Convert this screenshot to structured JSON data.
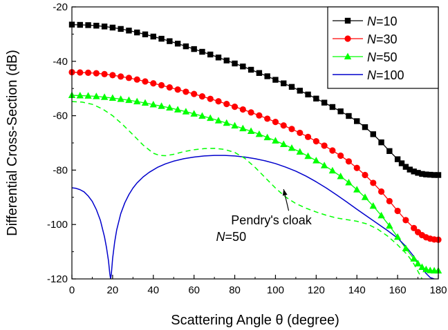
{
  "chart_data": {
    "type": "line",
    "xlabel": "Scattering Angle θ (degree)",
    "ylabel": "Differential Cross-Section (dB)",
    "xlim": [
      0,
      180
    ],
    "ylim": [
      -120,
      -20
    ],
    "xticks": [
      0,
      20,
      40,
      60,
      80,
      100,
      120,
      140,
      160,
      180
    ],
    "yticks": [
      -120,
      -100,
      -80,
      -60,
      -40,
      -20
    ],
    "grid": false,
    "legend_position": "top-right",
    "series": [
      {
        "name_prefix": "N",
        "name_value": "=10",
        "color": "#000000",
        "marker": "square",
        "dash": "solid",
        "x": [
          0,
          4,
          8,
          12,
          16,
          20,
          24,
          28,
          32,
          36,
          40,
          44,
          48,
          52,
          56,
          60,
          64,
          68,
          72,
          76,
          80,
          84,
          88,
          92,
          96,
          100,
          104,
          108,
          112,
          116,
          120,
          124,
          128,
          132,
          136,
          140,
          144,
          148,
          152,
          156,
          160,
          162,
          164,
          166,
          168,
          170,
          172,
          174,
          176,
          178,
          180
        ],
        "y": [
          -26.5,
          -26.6,
          -26.7,
          -26.9,
          -27.2,
          -27.6,
          -28.1,
          -28.7,
          -29.4,
          -30.1,
          -30.9,
          -31.7,
          -32.6,
          -33.5,
          -34.5,
          -35.5,
          -36.5,
          -37.5,
          -38.6,
          -39.7,
          -40.8,
          -41.9,
          -43.1,
          -44.3,
          -45.5,
          -46.8,
          -48.1,
          -49.4,
          -50.8,
          -52.2,
          -53.7,
          -55.2,
          -56.8,
          -58.4,
          -60.1,
          -62.0,
          -64.2,
          -66.8,
          -69.8,
          -73.0,
          -76.0,
          -77.5,
          -78.8,
          -79.8,
          -80.5,
          -81.0,
          -81.4,
          -81.6,
          -81.7,
          -81.8,
          -81.8
        ]
      },
      {
        "name_prefix": "N",
        "name_value": "=30",
        "color": "#ff0000",
        "marker": "circle",
        "dash": "solid",
        "x": [
          0,
          4,
          8,
          12,
          16,
          20,
          24,
          28,
          32,
          36,
          40,
          44,
          48,
          52,
          56,
          60,
          64,
          68,
          72,
          76,
          80,
          84,
          88,
          92,
          96,
          100,
          104,
          108,
          112,
          116,
          120,
          124,
          128,
          132,
          136,
          140,
          144,
          148,
          152,
          156,
          160,
          164,
          168,
          170,
          172,
          174,
          176,
          178,
          180
        ],
        "y": [
          -44.0,
          -44.1,
          -44.2,
          -44.4,
          -44.7,
          -45.1,
          -45.6,
          -46.1,
          -46.7,
          -47.4,
          -48.1,
          -48.8,
          -49.6,
          -50.4,
          -51.2,
          -52.0,
          -52.9,
          -53.8,
          -54.7,
          -55.7,
          -56.7,
          -57.7,
          -58.8,
          -59.9,
          -61.1,
          -62.3,
          -63.6,
          -64.9,
          -66.3,
          -67.8,
          -69.4,
          -71.0,
          -72.8,
          -74.7,
          -76.8,
          -79.2,
          -81.8,
          -84.7,
          -87.9,
          -91.4,
          -95.0,
          -98.4,
          -101.3,
          -102.8,
          -103.9,
          -104.7,
          -105.2,
          -105.5,
          -105.6
        ]
      },
      {
        "name_prefix": "N",
        "name_value": "=50",
        "color": "#00ff00",
        "marker": "triangle",
        "dash": "solid",
        "x": [
          0,
          4,
          8,
          12,
          16,
          20,
          24,
          28,
          32,
          36,
          40,
          44,
          48,
          52,
          56,
          60,
          64,
          68,
          72,
          76,
          80,
          84,
          88,
          92,
          96,
          100,
          104,
          108,
          112,
          116,
          120,
          124,
          128,
          132,
          136,
          140,
          144,
          148,
          152,
          156,
          160,
          164,
          168,
          170,
          172,
          174,
          176,
          178,
          180
        ],
        "y": [
          -52.5,
          -52.6,
          -52.7,
          -52.9,
          -53.2,
          -53.5,
          -53.9,
          -54.3,
          -54.8,
          -55.3,
          -55.9,
          -56.5,
          -57.1,
          -57.8,
          -58.5,
          -59.3,
          -60.1,
          -60.9,
          -61.8,
          -62.7,
          -63.7,
          -64.7,
          -65.7,
          -66.8,
          -68.0,
          -69.2,
          -70.5,
          -71.9,
          -73.3,
          -74.9,
          -76.5,
          -78.3,
          -80.2,
          -82.3,
          -84.6,
          -87.2,
          -90.0,
          -93.2,
          -96.7,
          -100.5,
          -104.6,
          -108.8,
          -112.6,
          -114.4,
          -115.7,
          -116.5,
          -116.9,
          -117.0,
          -117.0
        ]
      },
      {
        "name_prefix": "N",
        "name_value": "=100",
        "color": "#0000cc",
        "marker": "none",
        "dash": "solid",
        "x": [
          0,
          2,
          4,
          6,
          8,
          10,
          12,
          14,
          16,
          17,
          18,
          18.6,
          19,
          19.4,
          20,
          21,
          22,
          24,
          26,
          28,
          30,
          32,
          35,
          38,
          42,
          46,
          50,
          55,
          60,
          65,
          70,
          75,
          80,
          85,
          90,
          95,
          100,
          105,
          110,
          115,
          120,
          125,
          130,
          135,
          140,
          145,
          150,
          155,
          160,
          164,
          168,
          171,
          174,
          176,
          178
        ],
        "y": [
          -86.5,
          -86.7,
          -87.2,
          -88.0,
          -89.5,
          -91.5,
          -94.5,
          -98.5,
          -104.5,
          -108.5,
          -113.5,
          -118.0,
          -120,
          -118.0,
          -112.5,
          -106.5,
          -102.0,
          -96.0,
          -92.0,
          -89.0,
          -86.6,
          -84.7,
          -82.5,
          -80.8,
          -79.0,
          -77.7,
          -76.7,
          -75.8,
          -75.2,
          -74.8,
          -74.6,
          -74.6,
          -74.8,
          -75.2,
          -75.8,
          -76.6,
          -77.6,
          -78.9,
          -80.4,
          -82.2,
          -84.3,
          -86.6,
          -89.1,
          -91.7,
          -94.4,
          -97.0,
          -99.6,
          -102.2,
          -105.0,
          -108.0,
          -111.8,
          -115.0,
          -118.0,
          -119.5,
          -120
        ]
      },
      {
        "name": "",
        "color": "#00ff00",
        "marker": "none",
        "dash": "dashed",
        "x": [
          0,
          5,
          10,
          15,
          20,
          25,
          30,
          35,
          40,
          43,
          46,
          50,
          55,
          60,
          65,
          70,
          75,
          80,
          85,
          90,
          95,
          100,
          105,
          110,
          115,
          120,
          125,
          130,
          135,
          140,
          145,
          150,
          155,
          160,
          165,
          168,
          170,
          172
        ],
        "y": [
          -54.8,
          -55.0,
          -55.8,
          -57.5,
          -60.0,
          -63.3,
          -67.0,
          -70.8,
          -73.8,
          -74.6,
          -74.7,
          -74.2,
          -73.2,
          -72.5,
          -72.1,
          -72.0,
          -72.4,
          -73.5,
          -75.7,
          -79.0,
          -82.8,
          -86.6,
          -89.9,
          -92.3,
          -94.0,
          -95.4,
          -96.6,
          -97.6,
          -98.2,
          -98.8,
          -99.8,
          -101.6,
          -104.2,
          -107.5,
          -111.3,
          -114.5,
          -117.2,
          -120
        ]
      }
    ],
    "annotations": [
      {
        "line1": "Pendry's cloak",
        "line2_prefix": "N",
        "line2_value": "=50",
        "text_x": 98,
        "text_y": -100,
        "arrow_to_x": 104,
        "arrow_to_y": -87
      }
    ]
  }
}
